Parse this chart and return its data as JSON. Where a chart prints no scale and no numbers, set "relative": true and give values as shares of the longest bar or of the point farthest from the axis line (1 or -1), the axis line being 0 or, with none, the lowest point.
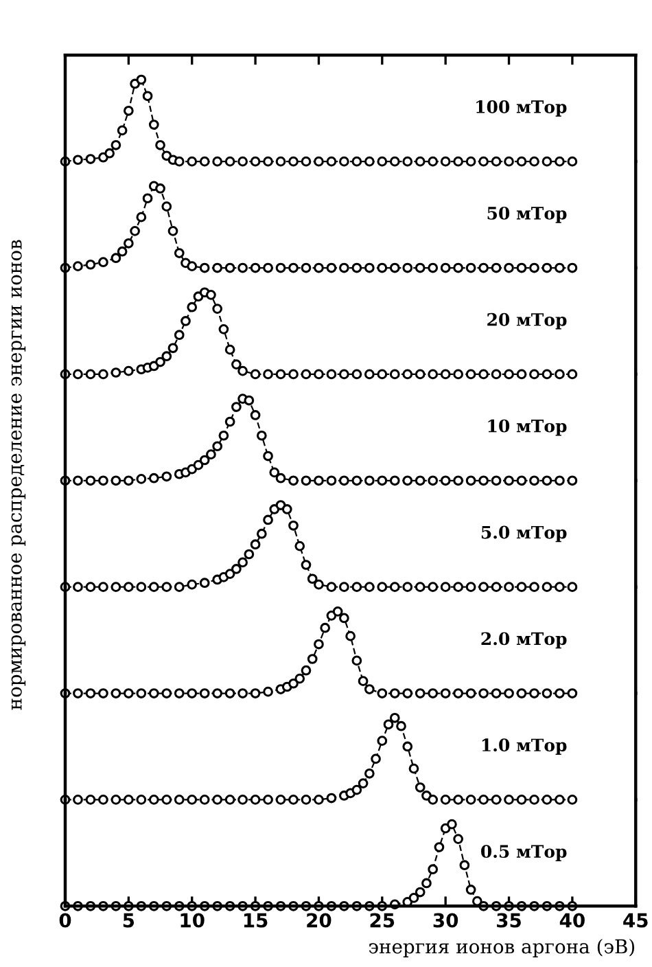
{
  "chart_data": [
    {
      "type": "line",
      "relative": true,
      "ylabel": "нормированное распределение энергии ионов",
      "xlim": [
        0,
        45
      ],
      "xticks": [
        0,
        5,
        10,
        15,
        20,
        25,
        30,
        35,
        40,
        45
      ],
      "tick_labels": false,
      "marker": "circle",
      "line_style": "dashed",
      "grid": false,
      "legend": false,
      "series": [
        {
          "name": "100 мТор",
          "color": "#000000",
          "x": [
            0,
            1,
            2,
            3,
            3.5,
            4,
            4.5,
            5,
            5.5,
            6,
            6.5,
            7,
            7.5,
            8,
            8.5,
            9,
            10,
            11,
            12,
            13,
            14,
            15,
            16,
            17,
            18,
            19,
            20,
            21,
            22,
            23,
            24,
            25,
            26,
            27,
            28,
            29,
            30,
            31,
            32,
            33,
            34,
            35,
            36,
            37,
            38,
            39,
            40
          ],
          "values": [
            0,
            0.02,
            0.03,
            0.05,
            0.1,
            0.2,
            0.38,
            0.62,
            0.95,
            1,
            0.8,
            0.45,
            0.2,
            0.07,
            0.02,
            0,
            0,
            0,
            0,
            0,
            0,
            0,
            0,
            0,
            0,
            0,
            0,
            0,
            0,
            0,
            0,
            0,
            0,
            0,
            0,
            0,
            0,
            0,
            0,
            0,
            0,
            0,
            0,
            0,
            0,
            0,
            0
          ]
        }
      ]
    },
    {
      "type": "line",
      "relative": true,
      "xlim": [
        0,
        45
      ],
      "xticks": [
        0,
        5,
        10,
        15,
        20,
        25,
        30,
        35,
        40,
        45
      ],
      "tick_labels": false,
      "marker": "circle",
      "line_style": "dashed",
      "grid": false,
      "legend": false,
      "series": [
        {
          "name": "50 мТор",
          "color": "#000000",
          "x": [
            0,
            1,
            2,
            3,
            4,
            4.5,
            5,
            5.5,
            6,
            6.5,
            7,
            7.5,
            8,
            8.5,
            9,
            9.5,
            10,
            11,
            12,
            13,
            14,
            15,
            16,
            17,
            18,
            19,
            20,
            21,
            22,
            23,
            24,
            25,
            26,
            27,
            28,
            29,
            30,
            31,
            32,
            33,
            34,
            35,
            36,
            37,
            38,
            39,
            40
          ],
          "values": [
            0,
            0.02,
            0.04,
            0.07,
            0.12,
            0.2,
            0.3,
            0.45,
            0.62,
            0.85,
            1,
            0.97,
            0.75,
            0.45,
            0.18,
            0.06,
            0.02,
            0,
            0,
            0,
            0,
            0,
            0,
            0,
            0,
            0,
            0,
            0,
            0,
            0,
            0,
            0,
            0,
            0,
            0,
            0,
            0,
            0,
            0,
            0,
            0,
            0,
            0,
            0,
            0,
            0,
            0
          ]
        }
      ]
    },
    {
      "type": "line",
      "relative": true,
      "xlim": [
        0,
        45
      ],
      "xticks": [
        0,
        5,
        10,
        15,
        20,
        25,
        30,
        35,
        40,
        45
      ],
      "tick_labels": false,
      "marker": "circle",
      "line_style": "dashed",
      "grid": false,
      "legend": false,
      "series": [
        {
          "name": "20 мТор",
          "color": "#000000",
          "x": [
            0,
            1,
            2,
            3,
            4,
            5,
            6,
            6.5,
            7,
            7.5,
            8,
            8.5,
            9,
            9.5,
            10,
            10.5,
            11,
            11.5,
            12,
            12.5,
            13,
            13.5,
            14,
            15,
            16,
            17,
            18,
            19,
            20,
            21,
            22,
            23,
            24,
            25,
            26,
            27,
            28,
            29,
            30,
            31,
            32,
            33,
            34,
            35,
            36,
            37,
            38,
            39,
            40
          ],
          "values": [
            0,
            0,
            0,
            0,
            0.02,
            0.04,
            0.06,
            0.08,
            0.1,
            0.15,
            0.22,
            0.32,
            0.48,
            0.65,
            0.82,
            0.95,
            1,
            0.97,
            0.8,
            0.55,
            0.3,
            0.12,
            0.04,
            0,
            0,
            0,
            0,
            0,
            0,
            0,
            0,
            0,
            0,
            0,
            0,
            0,
            0,
            0,
            0,
            0,
            0,
            0,
            0,
            0,
            0,
            0,
            0,
            0,
            0
          ]
        }
      ]
    },
    {
      "type": "line",
      "relative": true,
      "xlim": [
        0,
        45
      ],
      "xticks": [
        0,
        5,
        10,
        15,
        20,
        25,
        30,
        35,
        40,
        45
      ],
      "tick_labels": false,
      "marker": "circle",
      "line_style": "dashed",
      "grid": false,
      "legend": false,
      "series": [
        {
          "name": "10 мТор",
          "color": "#000000",
          "x": [
            0,
            1,
            2,
            3,
            4,
            5,
            6,
            7,
            8,
            9,
            9.5,
            10,
            10.5,
            11,
            11.5,
            12,
            12.5,
            13,
            13.5,
            14,
            14.5,
            15,
            15.5,
            16,
            16.5,
            17,
            18,
            19,
            20,
            21,
            22,
            23,
            24,
            25,
            26,
            27,
            28,
            29,
            30,
            31,
            32,
            33,
            34,
            35,
            36,
            37,
            38,
            39,
            40
          ],
          "values": [
            0,
            0,
            0,
            0,
            0,
            0,
            0.02,
            0.03,
            0.05,
            0.08,
            0.1,
            0.14,
            0.19,
            0.25,
            0.32,
            0.42,
            0.55,
            0.72,
            0.9,
            1,
            0.98,
            0.8,
            0.55,
            0.3,
            0.1,
            0.03,
            0,
            0,
            0,
            0,
            0,
            0,
            0,
            0,
            0,
            0,
            0,
            0,
            0,
            0,
            0,
            0,
            0,
            0,
            0,
            0,
            0,
            0,
            0
          ]
        }
      ]
    },
    {
      "type": "line",
      "relative": true,
      "xlim": [
        0,
        45
      ],
      "xticks": [
        0,
        5,
        10,
        15,
        20,
        25,
        30,
        35,
        40,
        45
      ],
      "tick_labels": false,
      "marker": "circle",
      "line_style": "dashed",
      "grid": false,
      "legend": false,
      "series": [
        {
          "name": "5.0 мТор",
          "color": "#000000",
          "x": [
            0,
            1,
            2,
            3,
            4,
            5,
            6,
            7,
            8,
            9,
            10,
            11,
            12,
            12.5,
            13,
            13.5,
            14,
            14.5,
            15,
            15.5,
            16,
            16.5,
            17,
            17.5,
            18,
            18.5,
            19,
            19.5,
            20,
            21,
            22,
            23,
            24,
            25,
            26,
            27,
            28,
            29,
            30,
            31,
            32,
            33,
            34,
            35,
            36,
            37,
            38,
            39,
            40
          ],
          "values": [
            0,
            0,
            0,
            0,
            0,
            0,
            0,
            0,
            0,
            0,
            0.03,
            0.05,
            0.09,
            0.12,
            0.16,
            0.22,
            0.3,
            0.4,
            0.52,
            0.65,
            0.82,
            0.95,
            1,
            0.95,
            0.75,
            0.5,
            0.27,
            0.1,
            0.03,
            0,
            0,
            0,
            0,
            0,
            0,
            0,
            0,
            0,
            0,
            0,
            0,
            0,
            0,
            0,
            0,
            0,
            0,
            0,
            0
          ]
        }
      ]
    },
    {
      "type": "line",
      "relative": true,
      "xlim": [
        0,
        45
      ],
      "xticks": [
        0,
        5,
        10,
        15,
        20,
        25,
        30,
        35,
        40,
        45
      ],
      "tick_labels": false,
      "marker": "circle",
      "line_style": "dashed",
      "grid": false,
      "legend": false,
      "series": [
        {
          "name": "2.0 мТор",
          "color": "#000000",
          "x": [
            0,
            1,
            2,
            3,
            4,
            5,
            6,
            7,
            8,
            9,
            10,
            11,
            12,
            13,
            14,
            15,
            16,
            17,
            17.5,
            18,
            18.5,
            19,
            19.5,
            20,
            20.5,
            21,
            21.5,
            22,
            22.5,
            23,
            23.5,
            24,
            25,
            26,
            27,
            28,
            29,
            30,
            31,
            32,
            33,
            34,
            35,
            36,
            37,
            38,
            39,
            40
          ],
          "values": [
            0,
            0,
            0,
            0,
            0,
            0,
            0,
            0,
            0,
            0,
            0,
            0,
            0,
            0,
            0,
            0,
            0.02,
            0.05,
            0.08,
            0.12,
            0.18,
            0.28,
            0.42,
            0.6,
            0.8,
            0.95,
            1,
            0.92,
            0.7,
            0.4,
            0.15,
            0.05,
            0,
            0,
            0,
            0,
            0,
            0,
            0,
            0,
            0,
            0,
            0,
            0,
            0,
            0,
            0,
            0
          ]
        }
      ]
    },
    {
      "type": "line",
      "relative": true,
      "xlim": [
        0,
        45
      ],
      "xticks": [
        0,
        5,
        10,
        15,
        20,
        25,
        30,
        35,
        40,
        45
      ],
      "tick_labels": false,
      "marker": "circle",
      "line_style": "dashed",
      "grid": false,
      "legend": false,
      "series": [
        {
          "name": "1.0 мТор",
          "color": "#000000",
          "x": [
            0,
            1,
            2,
            3,
            4,
            5,
            6,
            7,
            8,
            9,
            10,
            11,
            12,
            13,
            14,
            15,
            16,
            17,
            18,
            19,
            20,
            21,
            22,
            22.5,
            23,
            23.5,
            24,
            24.5,
            25,
            25.5,
            26,
            26.5,
            27,
            27.5,
            28,
            28.5,
            29,
            30,
            31,
            32,
            33,
            34,
            35,
            36,
            37,
            38,
            39,
            40
          ],
          "values": [
            0,
            0,
            0,
            0,
            0,
            0,
            0,
            0,
            0,
            0,
            0,
            0,
            0,
            0,
            0,
            0,
            0,
            0,
            0,
            0,
            0,
            0.02,
            0.05,
            0.08,
            0.12,
            0.2,
            0.32,
            0.5,
            0.72,
            0.92,
            1,
            0.9,
            0.65,
            0.38,
            0.15,
            0.05,
            0,
            0,
            0,
            0,
            0,
            0,
            0,
            0,
            0,
            0,
            0,
            0
          ]
        }
      ]
    },
    {
      "type": "line",
      "relative": true,
      "xlabel": "энергия ионов аргона (эВ)",
      "xlim": [
        0,
        45
      ],
      "xticks": [
        0,
        5,
        10,
        15,
        20,
        25,
        30,
        35,
        40,
        45
      ],
      "tick_labels": "x",
      "marker": "circle",
      "line_style": "dashed",
      "grid": false,
      "legend": false,
      "series": [
        {
          "name": "0.5 мТор",
          "color": "#000000",
          "x": [
            0,
            1,
            2,
            3,
            4,
            5,
            6,
            7,
            8,
            9,
            10,
            11,
            12,
            13,
            14,
            15,
            16,
            17,
            18,
            19,
            20,
            21,
            22,
            23,
            24,
            25,
            26,
            27,
            27.5,
            28,
            28.5,
            29,
            29.5,
            30,
            30.5,
            31,
            31.5,
            32,
            32.5,
            33,
            34,
            35,
            36,
            37,
            38,
            39,
            40
          ],
          "values": [
            0,
            0,
            0,
            0,
            0,
            0,
            0,
            0,
            0,
            0,
            0,
            0,
            0,
            0,
            0,
            0,
            0,
            0,
            0,
            0,
            0,
            0,
            0,
            0,
            0,
            0,
            0.02,
            0.05,
            0.1,
            0.17,
            0.28,
            0.45,
            0.72,
            0.95,
            1,
            0.82,
            0.5,
            0.2,
            0.06,
            0,
            0,
            0,
            0,
            0,
            0,
            0,
            0
          ]
        }
      ]
    }
  ]
}
